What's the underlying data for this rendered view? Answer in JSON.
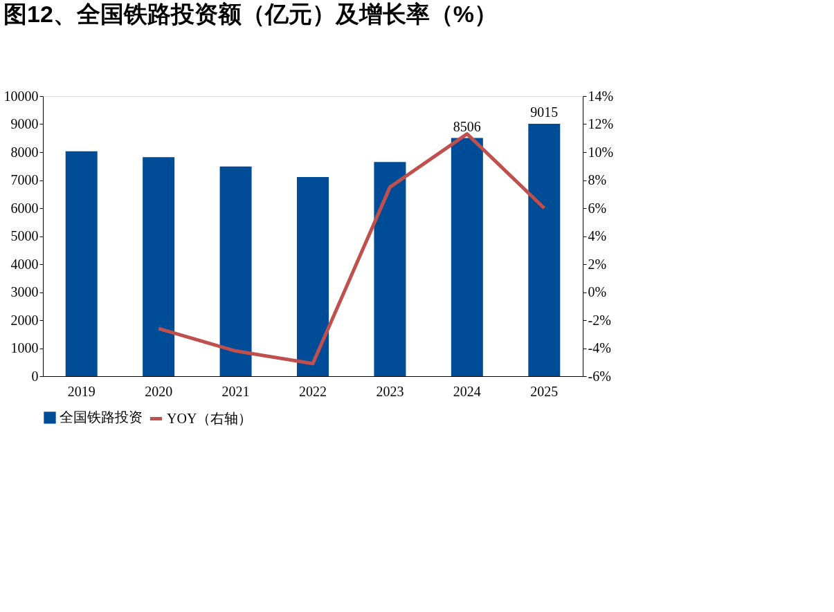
{
  "chart_data": {
    "type": "bar",
    "title": "图12、全国铁路投资额（亿元）及增长率（%）",
    "categories": [
      "2019",
      "2020",
      "2021",
      "2022",
      "2023",
      "2024",
      "2025"
    ],
    "series": [
      {
        "name": "全国铁路投资",
        "color": "#004c97",
        "values": [
          8030,
          7820,
          7490,
          7110,
          7650,
          8506,
          9015
        ],
        "value_labels": [
          null,
          null,
          null,
          null,
          null,
          "8506",
          "9015"
        ]
      },
      {
        "name": "YOY（右轴）",
        "type": "line",
        "axis": "y2",
        "color": "#c0504d",
        "values": [
          null,
          -2.6,
          -4.2,
          -5.1,
          7.5,
          11.3,
          6.0
        ]
      }
    ],
    "ylim": [
      0,
      10000
    ],
    "yticks": [
      0,
      1000,
      2000,
      3000,
      4000,
      5000,
      6000,
      7000,
      8000,
      9000,
      10000
    ],
    "y2lim": [
      -6,
      14
    ],
    "y2ticks": [
      {
        "value": -6,
        "label": "-6%"
      },
      {
        "value": -4,
        "label": "-4%"
      },
      {
        "value": -2,
        "label": "-2%"
      },
      {
        "value": 0,
        "label": "0%"
      },
      {
        "value": 2,
        "label": "2%"
      },
      {
        "value": 4,
        "label": "4%"
      },
      {
        "value": 6,
        "label": "6%"
      },
      {
        "value": 8,
        "label": "8%"
      },
      {
        "value": 10,
        "label": "10%"
      },
      {
        "value": 12,
        "label": "12%"
      },
      {
        "value": 14,
        "label": "14%"
      }
    ],
    "grid": false,
    "legend": "bottom",
    "marker": "none",
    "line_style": "solid"
  }
}
